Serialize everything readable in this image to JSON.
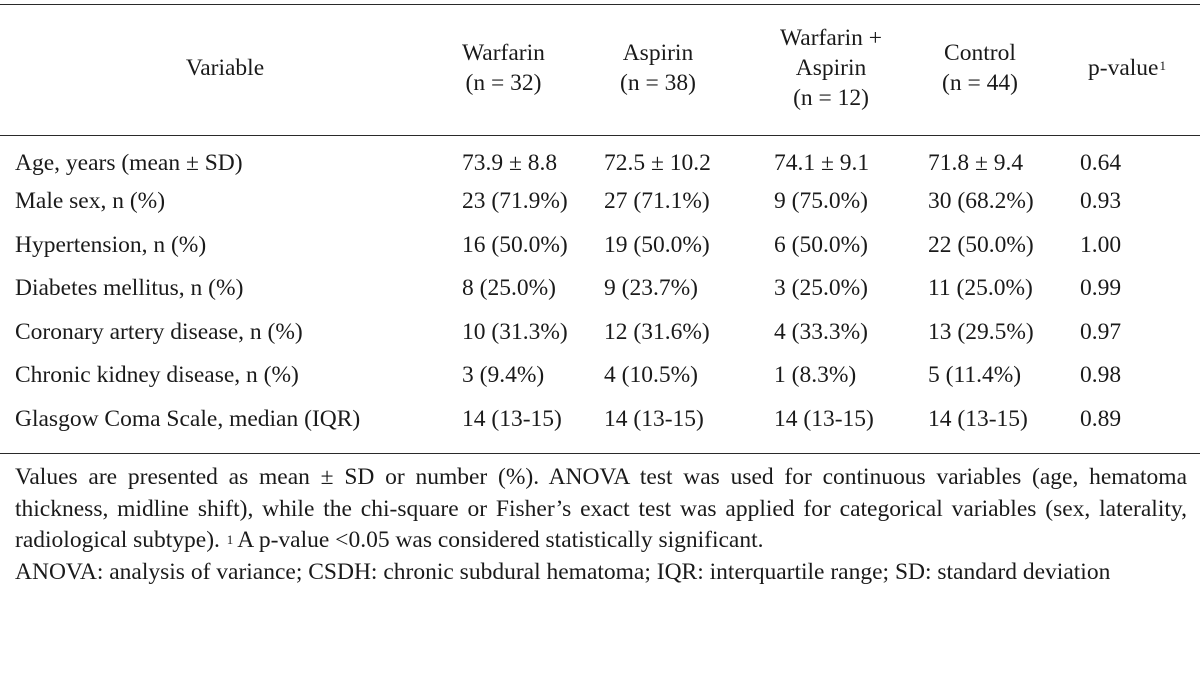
{
  "table": {
    "headers": {
      "variable": "Variable",
      "warfarin": {
        "line1": "Warfarin",
        "line2": "(n = 32)"
      },
      "aspirin": {
        "line1": "Aspirin",
        "line2": "(n = 38)"
      },
      "combo": {
        "line1": "Warfarin +",
        "line2": "Aspirin",
        "line3": "(n = 12)"
      },
      "control": {
        "line1": "Control",
        "line2": "(n = 44)"
      },
      "pvalue": {
        "label": "p-value",
        "footnote_mark": "1"
      }
    },
    "rows": [
      {
        "variable": "Age, years (mean ± SD)",
        "warfarin": "73.9 ± 8.8",
        "aspirin": "72.5 ± 10.2",
        "combo": "74.1 ± 9.1",
        "control": "71.8 ± 9.4",
        "p": "0.64"
      },
      {
        "variable": "Male sex, n (%)",
        "warfarin": "23 (71.9%)",
        "aspirin": "27 (71.1%)",
        "combo": "9 (75.0%)",
        "control": "30 (68.2%)",
        "p": "0.93"
      },
      {
        "variable": "Hypertension, n (%)",
        "warfarin": "16 (50.0%)",
        "aspirin": "19 (50.0%)",
        "combo": "6 (50.0%)",
        "control": "22 (50.0%)",
        "p": "1.00"
      },
      {
        "variable": "Diabetes mellitus, n (%)",
        "warfarin": "8 (25.0%)",
        "aspirin": "9 (23.7%)",
        "combo": "3 (25.0%)",
        "control": "11 (25.0%)",
        "p": "0.99"
      },
      {
        "variable": "Coronary artery disease, n (%)",
        "warfarin": "10 (31.3%)",
        "aspirin": "12 (31.6%)",
        "combo": "4 (33.3%)",
        "control": "13 (29.5%)",
        "p": "0.97"
      },
      {
        "variable": "Chronic kidney disease, n (%)",
        "warfarin": "3 (9.4%)",
        "aspirin": "4 (10.5%)",
        "combo": "1 (8.3%)",
        "control": "5 (11.4%)",
        "p": "0.98"
      },
      {
        "variable": "Glasgow Coma Scale, median (IQR)",
        "warfarin": "14 (13-15)",
        "aspirin": "14 (13-15)",
        "combo": "14 (13-15)",
        "control": "14 (13-15)",
        "p": "0.89"
      }
    ]
  },
  "notes": {
    "paragraph1_part1": "Values are presented as mean ± SD or number (%). ANOVA test was used for continuous variables (age, hematoma thickness, midline shift), while the chi-square or Fisher’s exact test was applied for categorical variables (sex, laterality, radiological subtype).",
    "footnote_mark": "1",
    "paragraph1_part2": "A p-value <0.05 was considered statistically significant.",
    "abbreviations": "ANOVA: analysis of variance; CSDH: chronic subdural hematoma; IQR: interquartile range; SD: standard deviation"
  }
}
